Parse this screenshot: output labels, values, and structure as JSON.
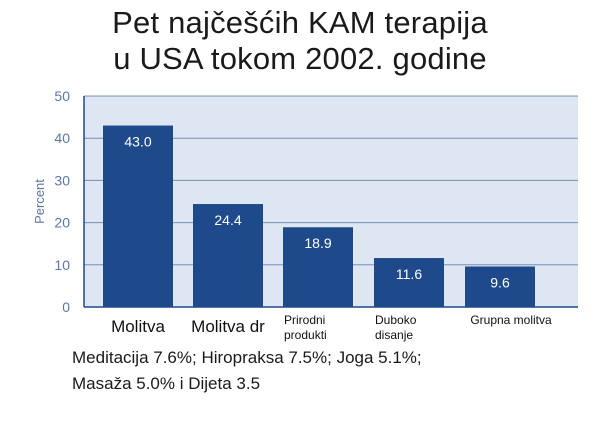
{
  "chart_data": {
    "type": "bar",
    "title_lines": [
      "Pet najčešćih KAM terapija",
      "u USA tokom 2002. godine"
    ],
    "ylabel": "Percent",
    "xlabel": "",
    "ylim": [
      0,
      50
    ],
    "yticks": [
      0,
      10,
      20,
      30,
      40,
      50
    ],
    "grid": true,
    "categories": [
      [
        "Molitva"
      ],
      [
        "Molitva dr"
      ],
      [
        "Prirodni",
        "produkti"
      ],
      [
        "Duboko",
        "disanje"
      ],
      [
        "Grupna molitva"
      ]
    ],
    "values": [
      43.0,
      24.4,
      18.9,
      11.6,
      9.6
    ],
    "value_labels": [
      "43.0",
      "24.4",
      "18.9",
      "11.6",
      "9.6"
    ],
    "colors": {
      "bar": "#1e4a8c",
      "plot_bg": "#dde6f1",
      "grid": "#1e4a8c",
      "axis_text": "#5b78a4",
      "value_text": "#ffffff"
    }
  },
  "notes": [
    "Meditacija 7.6%; Hiropraksa 7.5%; Joga 5.1%;",
    "Masaža 5.0% i Dijeta 3.5"
  ]
}
